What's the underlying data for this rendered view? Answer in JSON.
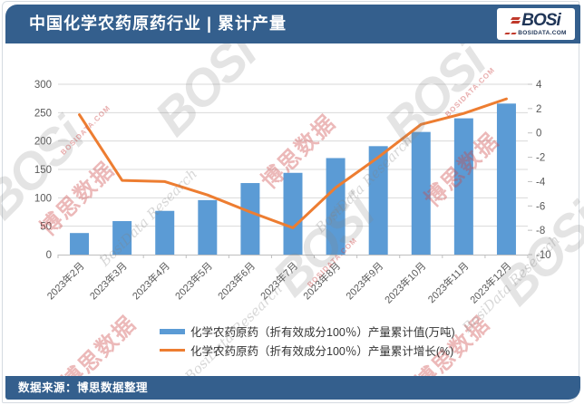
{
  "header": {
    "title": "中国化学农药原药行业 | 累计产量",
    "logo": {
      "name": "BOSi",
      "site": "BOSIDATA.COM"
    }
  },
  "footer": {
    "source": "数据来源：博思数据整理"
  },
  "watermarks": {
    "brand": "BOSi",
    "brand_cn": "博思数据",
    "research": "BosiData Research",
    "site": "BOSIDATA.COM"
  },
  "chart_data": {
    "type": "bar",
    "subtype": "combo bar+line, dual axis",
    "title": "中国化学农药原药行业 | 累计产量",
    "categories": [
      "2023年2月",
      "2023年3月",
      "2023年4月",
      "2023年5月",
      "2023年6月",
      "2023年7月",
      "2023年8月",
      "2023年9月",
      "2023年10月",
      "2023年11月",
      "2023年12月"
    ],
    "series": [
      {
        "name": "化学农药原药（折有效成分100％）产量累计值(万吨)",
        "type": "bar",
        "yaxis": "left",
        "color": "#5B9BD5",
        "values": [
          38,
          59,
          77,
          96,
          126,
          144,
          170,
          191,
          216,
          240,
          266
        ]
      },
      {
        "name": "化学农药原药（折有效成分100％）产量累计增长(%)",
        "type": "line",
        "yaxis": "right",
        "color": "#ED7D31",
        "values": [
          1.5,
          -3.9,
          -4.0,
          -5.1,
          -6.5,
          -7.8,
          -4.5,
          -2.0,
          0.7,
          1.6,
          2.8
        ]
      }
    ],
    "left_axis": {
      "min": 0,
      "max": 300,
      "ticks": [
        0,
        50,
        100,
        150,
        200,
        250,
        300
      ]
    },
    "right_axis": {
      "min": -10,
      "max": 4,
      "ticks": [
        4,
        2,
        0,
        -2,
        -4,
        -6,
        -8,
        -10
      ]
    },
    "grid": true,
    "legend_position": "bottom",
    "colors": {
      "bar": "#5B9BD5",
      "line": "#ED7D31",
      "gridline": "#D9D9D9",
      "axis": "#BFBFBF",
      "tick_text": "#595959",
      "banner": "#345F8D"
    }
  }
}
